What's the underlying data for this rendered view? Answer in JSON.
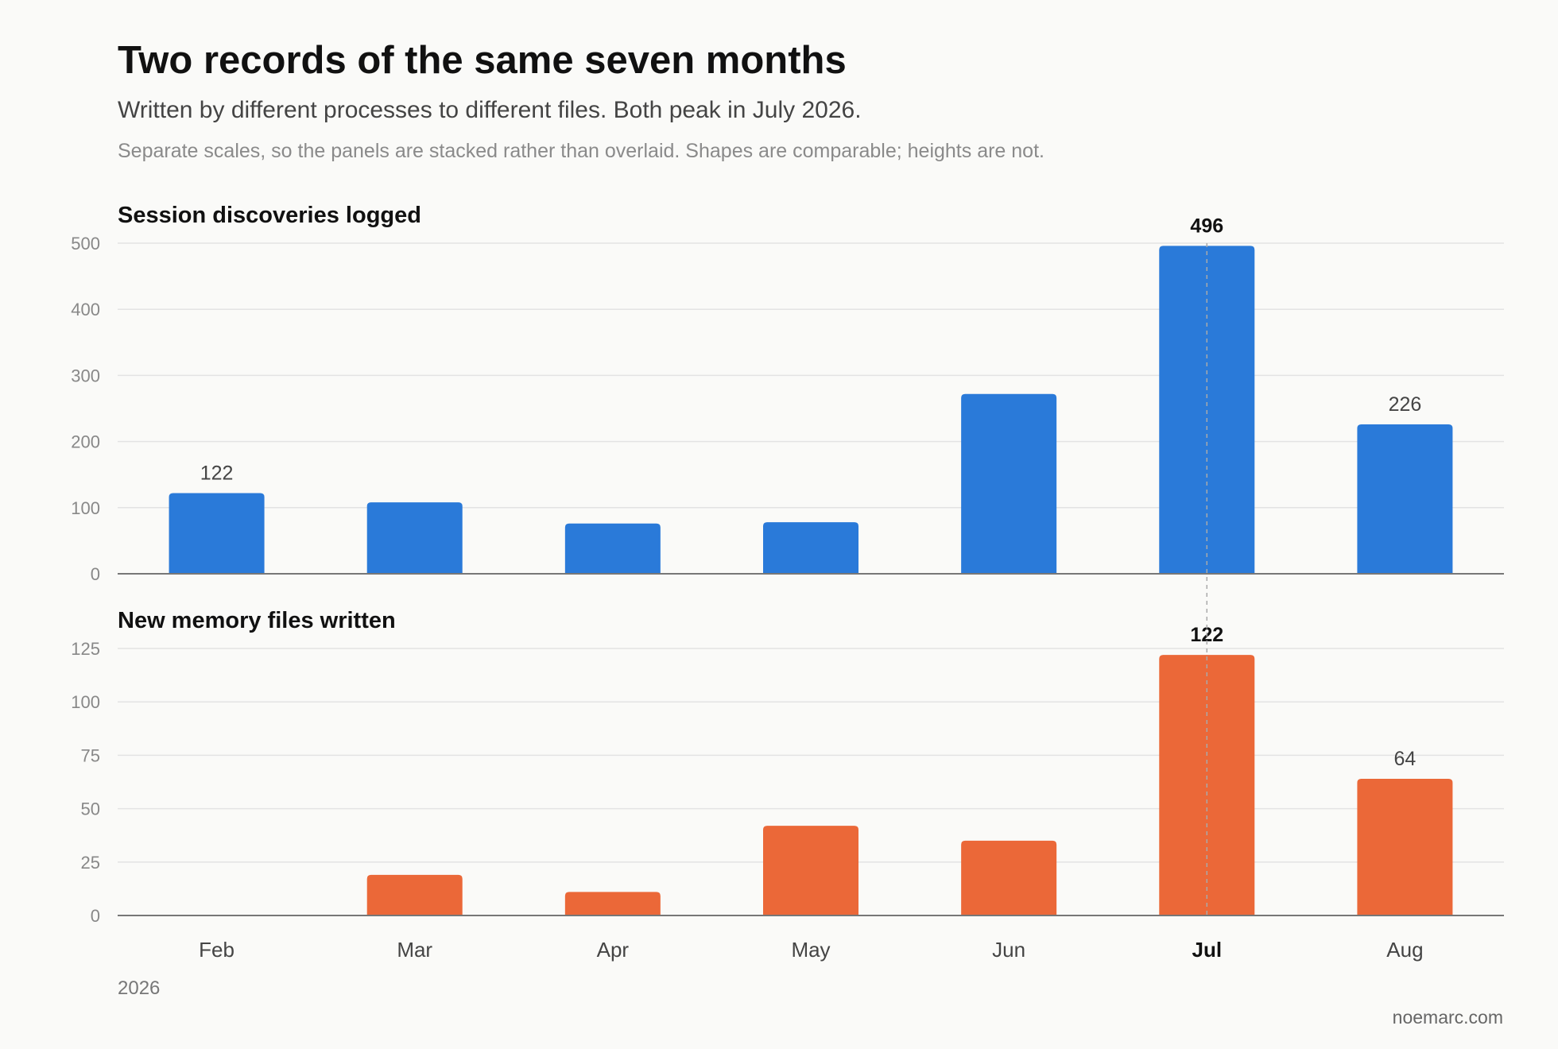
{
  "header": {
    "title": "Two records of the same seven months",
    "subtitle": "Written by different processes to different files. Both peak in July 2026.",
    "note": "Separate scales, so the panels are stacked rather than overlaid. Shapes are comparable; heights are not."
  },
  "footer": {
    "year": "2026",
    "source": "noemarc.com"
  },
  "chart_data": [
    {
      "type": "bar",
      "title": "Session discoveries logged",
      "categories": [
        "Feb",
        "Mar",
        "Apr",
        "May",
        "Jun",
        "Jul",
        "Aug"
      ],
      "values": [
        122,
        108,
        76,
        78,
        272,
        496,
        226
      ],
      "ylim": [
        0,
        500
      ],
      "yticks": [
        0,
        100,
        200,
        300,
        400,
        500
      ],
      "labeled_values": [
        "122",
        null,
        null,
        null,
        null,
        "496",
        "226"
      ],
      "highlight_category": "Jul",
      "color": "#2a7ad9",
      "grid": true
    },
    {
      "type": "bar",
      "title": "New memory files written",
      "categories": [
        "Feb",
        "Mar",
        "Apr",
        "May",
        "Jun",
        "Jul",
        "Aug"
      ],
      "values": [
        0,
        19,
        11,
        42,
        35,
        122,
        64
      ],
      "ylim": [
        0,
        125
      ],
      "yticks": [
        0,
        25,
        50,
        75,
        100,
        125
      ],
      "labeled_values": [
        null,
        null,
        null,
        null,
        null,
        "122",
        "64"
      ],
      "highlight_category": "Jul",
      "color": "#eb6838",
      "grid": true
    }
  ]
}
